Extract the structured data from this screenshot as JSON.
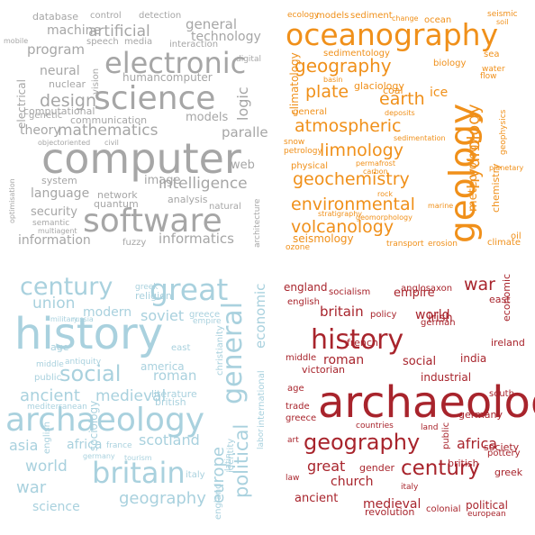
{
  "clouds": [
    {
      "id": "computer-cloud",
      "color": "#a6a6a6",
      "words": [
        "computer",
        "software",
        "science",
        "electronic",
        "informatics",
        "intelligence",
        "information",
        "mathematics",
        "artificial",
        "design",
        "machine",
        "security",
        "program",
        "language",
        "general",
        "technology",
        "neural",
        "theory",
        "parallel",
        "logic",
        "models",
        "humancomputer",
        "image",
        "web",
        "network",
        "system",
        "computational",
        "communication",
        "quantum",
        "database",
        "control",
        "detection",
        "speech",
        "media",
        "interaction",
        "nuclear",
        "electrical",
        "vision",
        "genetic",
        "digital",
        "fuzzy",
        "analysis",
        "natural",
        "architecture",
        "semantic",
        "multiagent",
        "objectoriented",
        "civil",
        "mobile",
        "optimisation"
      ]
    },
    {
      "id": "geology-cloud",
      "color": "#f0901a",
      "words": [
        "oceanography",
        "geology",
        "geography",
        "geochemistry",
        "environmental",
        "atmospheric",
        "limnology",
        "volcanology",
        "hydrology",
        "earth",
        "plate",
        "seismology",
        "climatology",
        "meteorology",
        "glaciology",
        "sedimentology",
        "ocean",
        "coal",
        "ice",
        "chemistry",
        "general",
        "deposits",
        "geophysics",
        "petrology",
        "physical",
        "permafrost",
        "carbon",
        "rock",
        "stratigraphy",
        "geomorphology",
        "transport",
        "erosion",
        "climate",
        "oil",
        "marine",
        "snow",
        "sedimentation",
        "biology",
        "sea",
        "water",
        "flow",
        "basin",
        "ecology",
        "models",
        "sediment",
        "change",
        "seismic",
        "soil",
        "planetary",
        "ozone"
      ]
    },
    {
      "id": "history-blue-cloud",
      "color": "#a9d1de",
      "words": [
        "history",
        "archaeology",
        "britain",
        "great",
        "century",
        "social",
        "general",
        "ancient",
        "political",
        "war",
        "asia",
        "geography",
        "scotland",
        "world",
        "europe",
        "medieval",
        "union",
        "modern",
        "soviet",
        "roman",
        "africa",
        "economic",
        "science",
        "religion",
        "greece",
        "empire",
        "america",
        "literature",
        "british",
        "international",
        "military",
        "russia",
        "age",
        "middle",
        "antiquity",
        "public",
        "east",
        "mediterranean",
        "english",
        "france",
        "germany",
        "tourism",
        "identity",
        "sociology",
        "labor",
        "christianity",
        "latin",
        "greek",
        "england",
        "italy"
      ]
    },
    {
      "id": "history-red-cloud",
      "color": "#a8242c",
      "words": [
        "history",
        "archaeology",
        "geography",
        "century",
        "britain",
        "war",
        "great",
        "roman",
        "world",
        "medieval",
        "church",
        "ancient",
        "social",
        "political",
        "england",
        "empire",
        "irish",
        "ireland",
        "india",
        "africa",
        "germany",
        "victorian",
        "french",
        "industrial",
        "anglosaxon",
        "socialism",
        "english",
        "policy",
        "german",
        "east",
        "economic",
        "middle",
        "age",
        "trade",
        "greece",
        "countries",
        "land",
        "south",
        "society",
        "pottery",
        "greek",
        "art",
        "law",
        "public",
        "italy",
        "british",
        "gender",
        "revolution",
        "colonial",
        "european"
      ]
    }
  ]
}
